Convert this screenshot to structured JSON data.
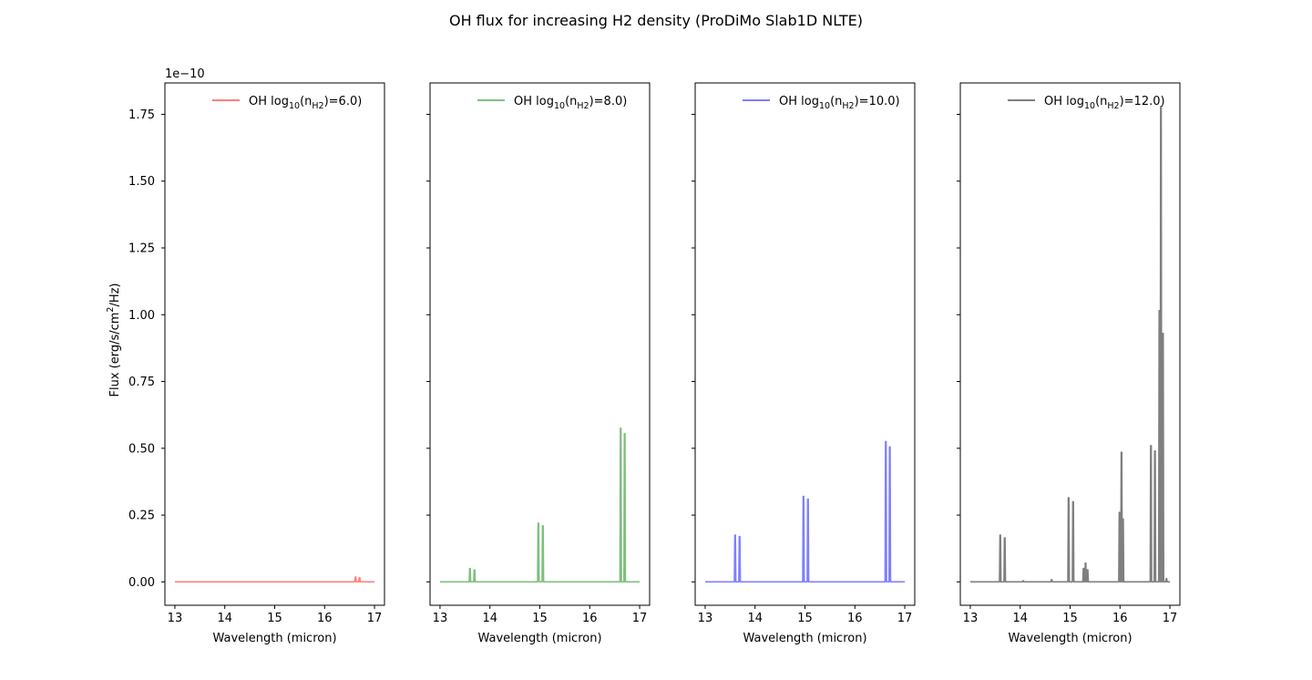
{
  "figure": {
    "title": "OH flux for increasing H2 density (ProDiMo Slab1D NLTE)",
    "y_offset_text": "1e−10",
    "ylabel_prefix": "Flux (erg/s/cm",
    "ylabel_sup": "2",
    "ylabel_suffix": "/Hz)"
  },
  "chart_data": [
    {
      "type": "line",
      "xlabel": "Wavelength (micron)",
      "ylabel": "Flux (erg/s/cm2/Hz)",
      "xlim": [
        12.8,
        17.2
      ],
      "ylim": [
        -8.75e-12,
        1.8675e-10
      ],
      "x_ticks": [
        13,
        14,
        15,
        16,
        17
      ],
      "y_ticks": [
        "0.00",
        "0.25",
        "0.50",
        "0.75",
        "1.00",
        "1.25",
        "1.50",
        "1.75"
      ],
      "y_scale_factor": "1e-10",
      "legend_position": "upper right",
      "legend": {
        "species": "OH",
        "log_prefix": "log",
        "log_sub": "10",
        "n_open": "(n",
        "n_sub": "H2",
        "value": ")=6.0)"
      },
      "series": [
        {
          "name": "OH  log10(nH2)=6.0)",
          "color": "#ff7f7f",
          "x_range": [
            13.0,
            17.0
          ],
          "peaks": [
            {
              "x": 16.62,
              "y": 1.8e-12
            },
            {
              "x": 16.7,
              "y": 1.6e-12
            }
          ]
        }
      ]
    },
    {
      "type": "line",
      "xlabel": "Wavelength (micron)",
      "xlim": [
        12.8,
        17.2
      ],
      "ylim": [
        -8.75e-12,
        1.8675e-10
      ],
      "x_ticks": [
        13,
        14,
        15,
        16,
        17
      ],
      "legend_position": "upper right",
      "legend": {
        "species": "OH",
        "log_prefix": "log",
        "log_sub": "10",
        "n_open": "(n",
        "n_sub": "H2",
        "value": ")=8.0)"
      },
      "series": [
        {
          "name": "OH  log10(nH2)=8.0)",
          "color": "#7fbf7f",
          "x_range": [
            13.0,
            17.0
          ],
          "peaks": [
            {
              "x": 13.6,
              "y": 5e-12
            },
            {
              "x": 13.69,
              "y": 4.5e-12
            },
            {
              "x": 14.97,
              "y": 2.2e-11
            },
            {
              "x": 15.06,
              "y": 2.1e-11
            },
            {
              "x": 16.62,
              "y": 5.75e-11
            },
            {
              "x": 16.7,
              "y": 5.55e-11
            }
          ]
        }
      ]
    },
    {
      "type": "line",
      "xlabel": "Wavelength (micron)",
      "xlim": [
        12.8,
        17.2
      ],
      "ylim": [
        -8.75e-12,
        1.8675e-10
      ],
      "x_ticks": [
        13,
        14,
        15,
        16,
        17
      ],
      "legend_position": "upper right",
      "legend": {
        "species": "OH",
        "log_prefix": "log",
        "log_sub": "10",
        "n_open": "(n",
        "n_sub": "H2",
        "value": ")=10.0)"
      },
      "series": [
        {
          "name": "OH  log10(nH2)=10.0)",
          "color": "#7f7fff",
          "x_range": [
            13.0,
            17.0
          ],
          "peaks": [
            {
              "x": 13.6,
              "y": 1.75e-11
            },
            {
              "x": 13.69,
              "y": 1.7e-11
            },
            {
              "x": 14.97,
              "y": 3.2e-11
            },
            {
              "x": 15.06,
              "y": 3.1e-11
            },
            {
              "x": 16.62,
              "y": 5.25e-11
            },
            {
              "x": 16.7,
              "y": 5.05e-11
            }
          ]
        }
      ]
    },
    {
      "type": "line",
      "xlabel": "Wavelength (micron)",
      "xlim": [
        12.8,
        17.2
      ],
      "ylim": [
        -8.75e-12,
        1.8675e-10
      ],
      "x_ticks": [
        13,
        14,
        15,
        16,
        17
      ],
      "legend_position": "upper right",
      "legend": {
        "species": "OH",
        "log_prefix": "log",
        "log_sub": "10",
        "n_open": "(n",
        "n_sub": "H2",
        "value": ")=12.0)"
      },
      "series": [
        {
          "name": "OH  log10(nH2)=12.0)",
          "color": "#7f7f7f",
          "x_range": [
            13.0,
            17.0
          ],
          "peaks": [
            {
              "x": 13.6,
              "y": 1.75e-11
            },
            {
              "x": 13.69,
              "y": 1.65e-11
            },
            {
              "x": 14.06,
              "y": 4e-13
            },
            {
              "x": 14.63,
              "y": 8e-13
            },
            {
              "x": 14.97,
              "y": 3.15e-11
            },
            {
              "x": 15.06,
              "y": 3e-11
            },
            {
              "x": 15.27,
              "y": 5e-12
            },
            {
              "x": 15.31,
              "y": 7e-12
            },
            {
              "x": 15.35,
              "y": 4.5e-12
            },
            {
              "x": 15.99,
              "y": 2.6e-11
            },
            {
              "x": 16.03,
              "y": 4.85e-11
            },
            {
              "x": 16.06,
              "y": 2.35e-11
            },
            {
              "x": 16.62,
              "y": 5.1e-11
            },
            {
              "x": 16.7,
              "y": 4.9e-11
            },
            {
              "x": 16.79,
              "y": 1.015e-10
            },
            {
              "x": 16.82,
              "y": 1.78e-10
            },
            {
              "x": 16.86,
              "y": 9.3e-11
            },
            {
              "x": 16.93,
              "y": 1.2e-12
            }
          ]
        }
      ]
    }
  ]
}
